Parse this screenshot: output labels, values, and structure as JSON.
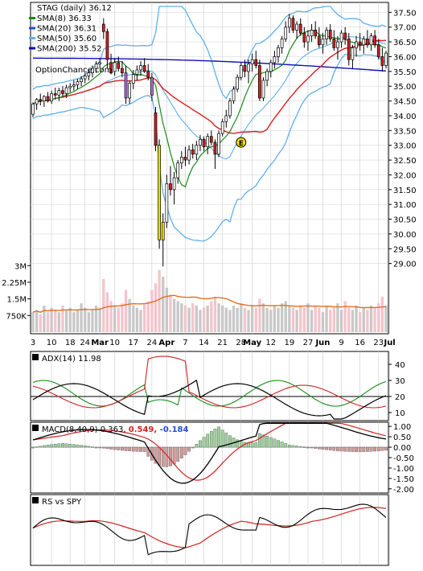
{
  "chart_data": {
    "type": "candlestick",
    "ticker_label": "STAG (daily) 36.12",
    "watermark": "OptionChance.com",
    "legend": [
      {
        "label": "SMA(8) 36.33",
        "color": "#1a8a1a"
      },
      {
        "label": "SMA(20) 36.31",
        "color": "#1f4fd6"
      },
      {
        "label": "SMA(50) 35.60",
        "color": "#5fb0e8"
      },
      {
        "label": "SMA(200) 35.52",
        "color": "#0b0bb0"
      }
    ],
    "colors": {
      "up_body": "#ffffff",
      "down_body": "#d42020",
      "purple_body": "#b070d8",
      "yellow_body": "#f0e000",
      "bollinger": "#5fb0e8",
      "bollinger_yellow": "#f0e040",
      "sma50": "#d42020",
      "sma200": "#1010b8",
      "sma8": "#1a8a1a",
      "volume": "#f4c4cc",
      "volume_dark": "#c8c8c8",
      "volume_avg": "#e07020",
      "adx": "#000000",
      "di_plus": "#1a8a1a",
      "di_minus": "#d42020",
      "macd": "#000000",
      "macd_signal": "#d42020",
      "macd_hist_up": "#9ad49a",
      "macd_hist_down": "#d49a9a",
      "rs": "#000000",
      "rs_ma": "#d42020",
      "earnings_marker": "#f0e000"
    },
    "price_axis": {
      "ticks": [
        "37.50",
        "37.00",
        "36.50",
        "36.00",
        "35.50",
        "35.00",
        "34.50",
        "34.00",
        "33.50",
        "33.00",
        "32.50",
        "32.00",
        "31.50",
        "31.00",
        "30.50",
        "30.00",
        "29.50",
        "29.00"
      ],
      "ylim": [
        28.8,
        37.7
      ]
    },
    "volume_axis": {
      "ticks": [
        "3M",
        "2.25M",
        "1.5M",
        "750K"
      ],
      "values": [
        3000000,
        2250000,
        1500000,
        750000
      ],
      "ylim": [
        0,
        3300000
      ]
    },
    "x_ticks": [
      "3",
      "10",
      "18",
      "24",
      "Mar",
      "10",
      "17",
      "24",
      "Apr",
      "7",
      "14",
      "21",
      "28",
      "May",
      "12",
      "19",
      "27",
      "Jun",
      "9",
      "16",
      "23",
      "Jul"
    ],
    "x_tick_index": [
      0,
      5,
      10,
      14,
      18,
      22,
      27,
      32,
      36,
      41,
      46,
      51,
      56,
      59,
      64,
      69,
      74,
      78,
      83,
      88,
      93,
      96
    ],
    "earnings_marker": {
      "label": "E",
      "index": 56,
      "price": 33.1
    },
    "candles": [
      [
        34.05,
        34.45,
        33.95,
        34.4
      ],
      [
        34.4,
        34.6,
        34.2,
        34.55
      ],
      [
        34.55,
        34.75,
        34.35,
        34.5
      ],
      [
        34.5,
        34.7,
        34.3,
        34.65
      ],
      [
        34.65,
        34.8,
        34.45,
        34.5
      ],
      [
        34.5,
        34.85,
        34.4,
        34.75
      ],
      [
        34.75,
        34.95,
        34.55,
        34.7
      ],
      [
        34.7,
        34.95,
        34.5,
        34.85
      ],
      [
        34.85,
        35.0,
        34.65,
        34.75
      ],
      [
        34.75,
        35.05,
        34.6,
        34.95
      ],
      [
        34.95,
        35.1,
        34.8,
        35.0
      ],
      [
        35.0,
        35.2,
        34.85,
        35.05
      ],
      [
        35.05,
        35.25,
        34.9,
        35.15
      ],
      [
        35.15,
        35.35,
        35.0,
        35.25
      ],
      [
        35.25,
        35.45,
        35.1,
        35.35
      ],
      [
        35.35,
        35.55,
        35.2,
        35.45
      ],
      [
        35.45,
        35.7,
        35.3,
        35.6
      ],
      [
        35.6,
        35.85,
        35.45,
        35.75
      ],
      [
        35.75,
        35.95,
        35.6,
        35.8
      ],
      [
        37.1,
        37.3,
        36.6,
        36.85
      ],
      [
        36.85,
        36.95,
        35.6,
        35.9
      ],
      [
        35.8,
        36.1,
        35.4,
        35.45
      ],
      [
        35.5,
        35.95,
        35.35,
        35.8
      ],
      [
        35.8,
        36.0,
        35.5,
        35.6
      ],
      [
        35.6,
        35.85,
        35.3,
        35.45
      ],
      [
        35.45,
        35.7,
        34.4,
        34.6
      ],
      [
        34.6,
        35.2,
        34.4,
        35.1
      ],
      [
        35.1,
        35.55,
        34.9,
        35.4
      ],
      [
        35.4,
        35.7,
        35.2,
        35.55
      ],
      [
        35.55,
        35.85,
        35.35,
        35.7
      ],
      [
        35.7,
        35.95,
        35.45,
        35.5
      ],
      [
        35.5,
        35.75,
        35.2,
        35.3
      ],
      [
        35.3,
        35.45,
        34.5,
        34.7
      ],
      [
        34.1,
        34.3,
        32.8,
        33.0
      ],
      [
        33.0,
        33.2,
        29.5,
        29.8
      ],
      [
        29.8,
        30.7,
        28.9,
        30.4
      ],
      [
        30.4,
        32.0,
        30.2,
        31.7
      ],
      [
        31.7,
        32.3,
        31.3,
        31.5
      ],
      [
        31.5,
        32.1,
        31.0,
        31.9
      ],
      [
        31.9,
        32.5,
        31.7,
        32.4
      ],
      [
        32.4,
        32.8,
        32.2,
        32.6
      ],
      [
        32.6,
        32.95,
        32.3,
        32.5
      ],
      [
        32.5,
        33.0,
        32.35,
        32.85
      ],
      [
        32.85,
        33.05,
        32.55,
        32.7
      ],
      [
        32.7,
        33.15,
        32.5,
        33.0
      ],
      [
        33.0,
        33.35,
        32.8,
        33.2
      ],
      [
        33.2,
        33.3,
        32.8,
        32.95
      ],
      [
        32.95,
        33.4,
        32.7,
        33.3
      ],
      [
        33.3,
        33.5,
        33.0,
        33.1
      ],
      [
        33.1,
        33.2,
        32.2,
        32.7
      ],
      [
        32.7,
        33.5,
        32.6,
        33.4
      ],
      [
        33.4,
        33.9,
        33.3,
        33.8
      ],
      [
        33.8,
        34.2,
        33.6,
        34.0
      ],
      [
        34.0,
        34.6,
        33.9,
        34.5
      ],
      [
        34.5,
        35.0,
        34.4,
        34.9
      ],
      [
        34.9,
        35.4,
        34.8,
        35.3
      ],
      [
        35.3,
        35.8,
        35.2,
        35.7
      ],
      [
        35.7,
        35.9,
        35.3,
        35.5
      ],
      [
        35.5,
        35.9,
        35.1,
        35.75
      ],
      [
        35.75,
        36.1,
        35.5,
        35.9
      ],
      [
        35.9,
        36.2,
        35.6,
        35.7
      ],
      [
        35.7,
        35.9,
        34.5,
        34.6
      ],
      [
        34.6,
        35.3,
        34.5,
        35.2
      ],
      [
        35.2,
        35.6,
        35.0,
        35.5
      ],
      [
        35.5,
        35.9,
        35.3,
        35.8
      ],
      [
        35.8,
        36.2,
        35.6,
        36.0
      ],
      [
        36.0,
        36.4,
        35.8,
        36.3
      ],
      [
        36.3,
        36.7,
        36.1,
        36.6
      ],
      [
        36.6,
        37.2,
        36.5,
        37.0
      ],
      [
        37.0,
        37.45,
        36.8,
        37.3
      ],
      [
        37.3,
        37.4,
        36.8,
        36.9
      ],
      [
        36.9,
        37.2,
        36.6,
        37.1
      ],
      [
        37.1,
        37.3,
        36.7,
        36.8
      ],
      [
        36.8,
        37.0,
        36.3,
        36.5
      ],
      [
        36.5,
        36.9,
        36.2,
        36.7
      ],
      [
        36.7,
        37.1,
        36.5,
        36.9
      ],
      [
        36.9,
        37.2,
        36.6,
        36.7
      ],
      [
        36.7,
        37.0,
        36.3,
        36.4
      ],
      [
        36.4,
        36.8,
        36.1,
        36.6
      ],
      [
        36.6,
        37.0,
        36.4,
        36.9
      ],
      [
        36.9,
        37.1,
        36.5,
        36.6
      ],
      [
        36.6,
        36.9,
        36.2,
        36.3
      ],
      [
        36.3,
        36.7,
        35.9,
        36.5
      ],
      [
        36.5,
        36.9,
        36.3,
        36.8
      ],
      [
        36.8,
        37.0,
        36.4,
        36.6
      ],
      [
        36.6,
        36.8,
        35.7,
        35.9
      ],
      [
        35.9,
        36.4,
        35.6,
        36.3
      ],
      [
        36.3,
        36.7,
        36.0,
        36.5
      ],
      [
        36.5,
        36.8,
        36.2,
        36.4
      ],
      [
        36.4,
        36.7,
        36.1,
        36.6
      ],
      [
        36.6,
        36.9,
        36.3,
        36.4
      ],
      [
        36.4,
        36.8,
        36.2,
        36.7
      ],
      [
        36.7,
        36.9,
        36.3,
        36.4
      ],
      [
        36.4,
        36.6,
        35.9,
        36.0
      ],
      [
        36.0,
        36.3,
        35.5,
        35.7
      ],
      [
        35.7,
        36.2,
        35.6,
        36.12
      ]
    ],
    "volume_millions": [
      0.9,
      1.0,
      0.8,
      1.2,
      0.9,
      1.1,
      1.0,
      0.9,
      1.2,
      1.0,
      1.1,
      0.9,
      1.0,
      1.3,
      1.1,
      0.9,
      1.0,
      1.2,
      1.1,
      2.4,
      1.8,
      1.4,
      1.2,
      1.1,
      1.3,
      1.9,
      1.5,
      1.2,
      1.1,
      1.0,
      1.3,
      1.4,
      1.9,
      2.2,
      2.8,
      2.5,
      2.0,
      1.7,
      1.5,
      1.4,
      1.3,
      1.2,
      1.1,
      1.3,
      1.2,
      1.0,
      1.1,
      1.2,
      1.4,
      1.6,
      1.3,
      1.2,
      1.1,
      1.0,
      1.2,
      1.1,
      1.3,
      1.1,
      1.0,
      1.2,
      1.1,
      1.5,
      1.3,
      1.1,
      1.0,
      1.2,
      1.1,
      1.3,
      1.4,
      1.2,
      1.1,
      1.0,
      1.2,
      1.1,
      1.3,
      1.0,
      1.2,
      1.1,
      0.9,
      1.2,
      1.0,
      1.1,
      1.3,
      1.0,
      1.4,
      1.1,
      1.0,
      1.2,
      0.9,
      1.1,
      1.0,
      1.2,
      1.1,
      1.3,
      1.6,
      1.2
    ],
    "adx_panel": {
      "label": "ADX(14) 11.98",
      "ticks": [
        "40",
        "30",
        "20",
        "10"
      ],
      "values": [
        40,
        30,
        20,
        10
      ],
      "ylim": [
        5,
        48
      ]
    },
    "macd_panel": {
      "label": "MACD(8,40,9) 0.363,",
      "signal_label": "0.549,",
      "hist_label": "-0.184",
      "ticks": [
        "1.00",
        "0.50",
        "0.00",
        "-0.50",
        "-1.00",
        "-1.50",
        "-2.00"
      ],
      "values": [
        1.0,
        0.5,
        0.0,
        -0.5,
        -1.0,
        -1.5,
        -2.0
      ],
      "ylim": [
        -2.2,
        1.2
      ]
    },
    "rs_panel": {
      "label": "RS vs SPY"
    }
  }
}
